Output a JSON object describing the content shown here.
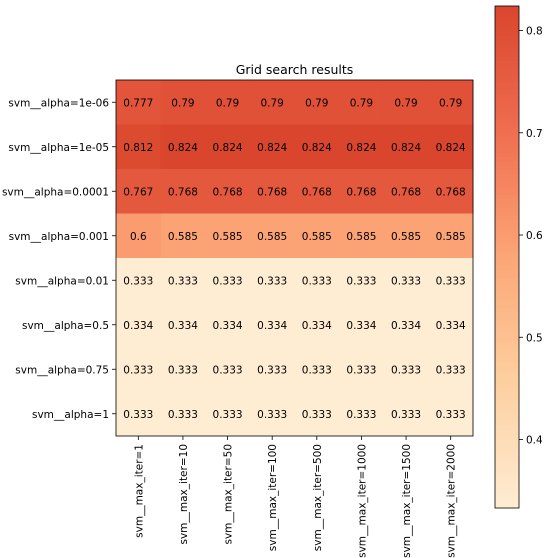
{
  "chart_data": {
    "type": "heatmap",
    "title": "Grid search results",
    "row_labels": [
      "svm__alpha=1e-06",
      "svm__alpha=1e-05",
      "svm__alpha=0.0001",
      "svm__alpha=0.001",
      "svm__alpha=0.01",
      "svm__alpha=0.5",
      "svm__alpha=0.75",
      "svm__alpha=1"
    ],
    "col_labels": [
      "svm__max_iter=1",
      "svm__max_iter=10",
      "svm__max_iter=50",
      "svm__max_iter=100",
      "svm__max_iter=500",
      "svm__max_iter=1000",
      "svm__max_iter=1500",
      "svm__max_iter=2000"
    ],
    "values": [
      [
        0.777,
        0.79,
        0.79,
        0.79,
        0.79,
        0.79,
        0.79,
        0.79
      ],
      [
        0.812,
        0.824,
        0.824,
        0.824,
        0.824,
        0.824,
        0.824,
        0.824
      ],
      [
        0.767,
        0.768,
        0.768,
        0.768,
        0.768,
        0.768,
        0.768,
        0.768
      ],
      [
        0.6,
        0.585,
        0.585,
        0.585,
        0.585,
        0.585,
        0.585,
        0.585
      ],
      [
        0.333,
        0.333,
        0.333,
        0.333,
        0.333,
        0.333,
        0.333,
        0.333
      ],
      [
        0.334,
        0.334,
        0.334,
        0.334,
        0.334,
        0.334,
        0.334,
        0.334
      ],
      [
        0.333,
        0.333,
        0.333,
        0.333,
        0.333,
        0.333,
        0.333,
        0.333
      ],
      [
        0.333,
        0.333,
        0.333,
        0.333,
        0.333,
        0.333,
        0.333,
        0.333
      ]
    ],
    "colormap": "OrRd",
    "color_range": [
      0.333,
      0.824
    ],
    "colorbar": {
      "ticks": [
        0.4,
        0.5,
        0.6,
        0.7,
        0.8
      ],
      "tick_labels": [
        "0.4",
        "0.5",
        "0.6",
        "0.7",
        "0.8"
      ],
      "position": "right"
    },
    "grid": false
  }
}
